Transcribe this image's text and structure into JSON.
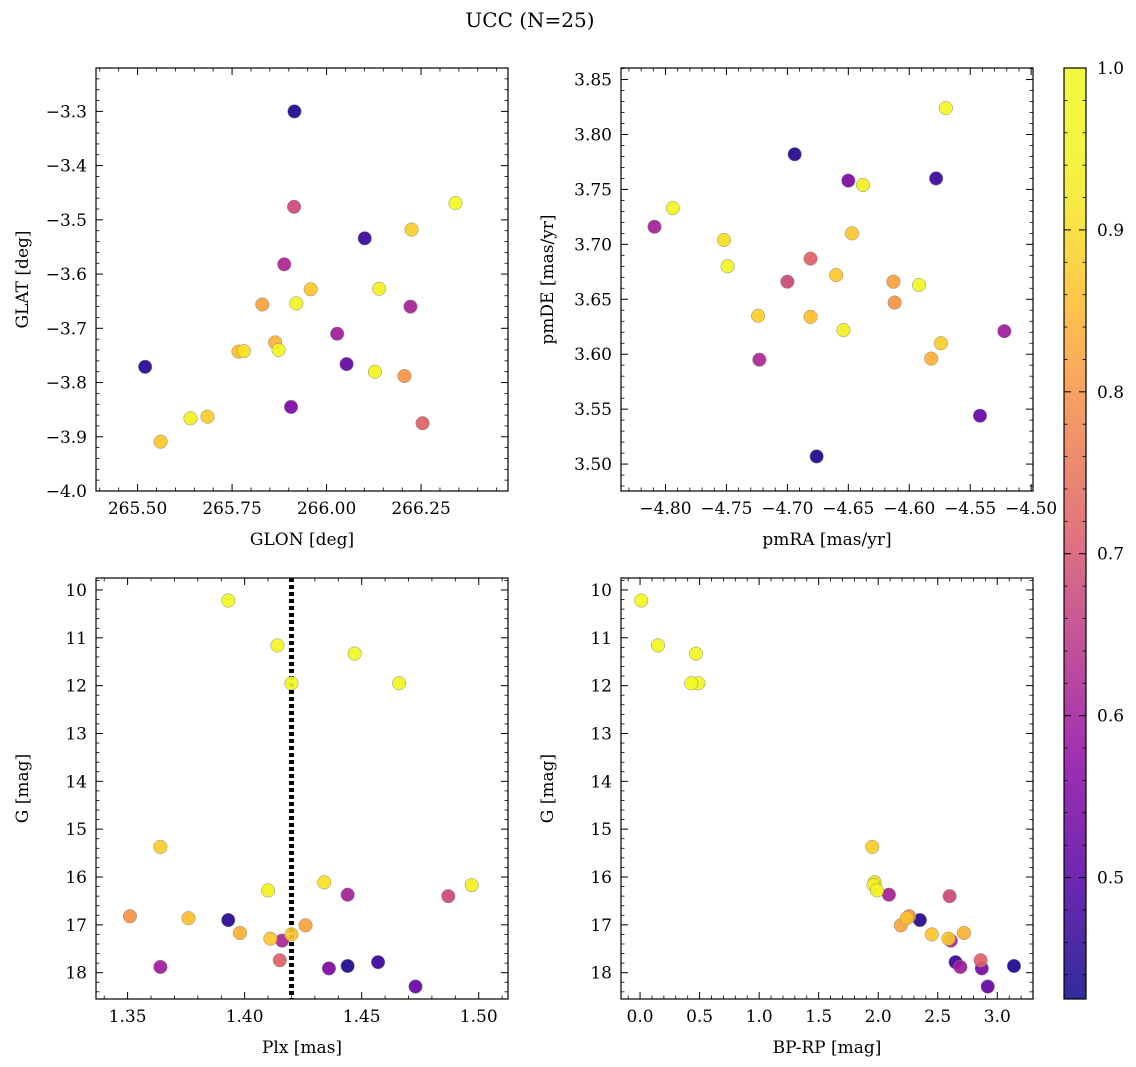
{
  "figure": {
    "title": "UCC (N=25)",
    "colorbar": {
      "min": 0.425,
      "max": 1.0,
      "ticks": [
        "0.5",
        "0.6",
        "0.7",
        "0.8",
        "0.9",
        "1.0"
      ],
      "colormap": "plasma"
    }
  },
  "chart_data": [
    {
      "type": "scatter",
      "xlabel": "GLON [deg]",
      "ylabel": "GLAT [deg]",
      "xlim": [
        265.39,
        266.48
      ],
      "ylim": [
        -4.0,
        -3.22
      ],
      "xticks": [
        265.5,
        265.75,
        266.0,
        266.25
      ],
      "xtick_labels": [
        "265.50",
        "265.75",
        "266.00",
        "266.25"
      ],
      "yticks": [
        -4.0,
        -3.9,
        -3.8,
        -3.7,
        -3.6,
        -3.5,
        -3.4,
        -3.3
      ],
      "ytick_labels": [
        "−4.0",
        "−3.9",
        "−3.8",
        "−3.7",
        "−3.6",
        "−3.5",
        "−3.4",
        "−3.3"
      ],
      "points": [
        {
          "x": 265.915,
          "y": -3.3,
          "c": 0.44
        },
        {
          "x": 265.52,
          "y": -3.771,
          "c": 0.45
        },
        {
          "x": 266.101,
          "y": -3.534,
          "c": 0.47
        },
        {
          "x": 266.053,
          "y": -3.766,
          "c": 0.52
        },
        {
          "x": 265.906,
          "y": -3.845,
          "c": 0.55
        },
        {
          "x": 266.028,
          "y": -3.71,
          "c": 0.6
        },
        {
          "x": 266.222,
          "y": -3.66,
          "c": 0.61
        },
        {
          "x": 265.888,
          "y": -3.582,
          "c": 0.62
        },
        {
          "x": 265.914,
          "y": -3.476,
          "c": 0.68
        },
        {
          "x": 266.254,
          "y": -3.875,
          "c": 0.72
        },
        {
          "x": 266.206,
          "y": -3.788,
          "c": 0.8
        },
        {
          "x": 265.83,
          "y": -3.656,
          "c": 0.82
        },
        {
          "x": 265.864,
          "y": -3.726,
          "c": 0.84
        },
        {
          "x": 265.767,
          "y": -3.743,
          "c": 0.86
        },
        {
          "x": 265.958,
          "y": -3.628,
          "c": 0.87
        },
        {
          "x": 265.561,
          "y": -3.909,
          "c": 0.87
        },
        {
          "x": 265.685,
          "y": -3.863,
          "c": 0.88
        },
        {
          "x": 266.225,
          "y": -3.518,
          "c": 0.88
        },
        {
          "x": 265.781,
          "y": -3.742,
          "c": 0.91
        },
        {
          "x": 266.139,
          "y": -3.627,
          "c": 0.93
        },
        {
          "x": 265.64,
          "y": -3.866,
          "c": 0.93
        },
        {
          "x": 266.128,
          "y": -3.78,
          "c": 0.96
        },
        {
          "x": 265.92,
          "y": -3.654,
          "c": 0.97
        },
        {
          "x": 265.873,
          "y": -3.74,
          "c": 0.97
        },
        {
          "x": 266.341,
          "y": -3.469,
          "c": 0.99
        }
      ]
    },
    {
      "type": "scatter",
      "xlabel": "pmRA [mas/yr]",
      "ylabel": "pmDE [mas/yr]",
      "xlim": [
        -4.8365,
        -4.4985
      ],
      "ylim": [
        3.4755,
        3.8605
      ],
      "xticks": [
        -4.8,
        -4.75,
        -4.7,
        -4.65,
        -4.6,
        -4.55,
        -4.5
      ],
      "xtick_labels": [
        "−4.80",
        "−4.75",
        "−4.70",
        "−4.65",
        "−4.60",
        "−4.55",
        "−4.50"
      ],
      "yticks": [
        3.5,
        3.55,
        3.6,
        3.65,
        3.7,
        3.75,
        3.8,
        3.85
      ],
      "ytick_labels": [
        "3.50",
        "3.55",
        "3.60",
        "3.65",
        "3.70",
        "3.75",
        "3.80",
        "3.85"
      ],
      "points": [
        {
          "x": -4.676,
          "y": 3.507,
          "c": 0.44
        },
        {
          "x": -4.694,
          "y": 3.782,
          "c": 0.45
        },
        {
          "x": -4.578,
          "y": 3.76,
          "c": 0.47
        },
        {
          "x": -4.542,
          "y": 3.544,
          "c": 0.52
        },
        {
          "x": -4.65,
          "y": 3.758,
          "c": 0.55
        },
        {
          "x": -4.522,
          "y": 3.621,
          "c": 0.6
        },
        {
          "x": -4.809,
          "y": 3.716,
          "c": 0.61
        },
        {
          "x": -4.723,
          "y": 3.595,
          "c": 0.62
        },
        {
          "x": -4.7,
          "y": 3.666,
          "c": 0.68
        },
        {
          "x": -4.681,
          "y": 3.687,
          "c": 0.72
        },
        {
          "x": -4.612,
          "y": 3.647,
          "c": 0.8
        },
        {
          "x": -4.613,
          "y": 3.666,
          "c": 0.82
        },
        {
          "x": -4.582,
          "y": 3.596,
          "c": 0.84
        },
        {
          "x": -4.681,
          "y": 3.634,
          "c": 0.86
        },
        {
          "x": -4.66,
          "y": 3.672,
          "c": 0.87
        },
        {
          "x": -4.647,
          "y": 3.71,
          "c": 0.87
        },
        {
          "x": -4.574,
          "y": 3.61,
          "c": 0.88
        },
        {
          "x": -4.724,
          "y": 3.635,
          "c": 0.88
        },
        {
          "x": -4.752,
          "y": 3.704,
          "c": 0.91
        },
        {
          "x": -4.654,
          "y": 3.622,
          "c": 0.93
        },
        {
          "x": -4.638,
          "y": 3.754,
          "c": 0.93
        },
        {
          "x": -4.749,
          "y": 3.68,
          "c": 0.96
        },
        {
          "x": -4.794,
          "y": 3.733,
          "c": 0.97
        },
        {
          "x": -4.592,
          "y": 3.663,
          "c": 0.97
        },
        {
          "x": -4.57,
          "y": 3.824,
          "c": 0.99
        }
      ]
    },
    {
      "type": "scatter",
      "xlabel": "Plx [mas]",
      "ylabel": "G [mag]",
      "xlim": [
        1.3365,
        1.5125
      ],
      "ylim": [
        18.55,
        9.75
      ],
      "y_inverted": true,
      "xticks": [
        1.35,
        1.4,
        1.45,
        1.5
      ],
      "xtick_labels": [
        "1.35",
        "1.40",
        "1.45",
        "1.50"
      ],
      "yticks": [
        10,
        11,
        12,
        13,
        14,
        15,
        16,
        17,
        18
      ],
      "ytick_labels": [
        "10",
        "11",
        "12",
        "13",
        "14",
        "15",
        "16",
        "17",
        "18"
      ],
      "vline": {
        "x": 1.42,
        "style": "dotted"
      },
      "points": [
        {
          "x": 1.444,
          "y": 17.86,
          "c": 0.44
        },
        {
          "x": 1.393,
          "y": 16.9,
          "c": 0.45
        },
        {
          "x": 1.457,
          "y": 17.78,
          "c": 0.47
        },
        {
          "x": 1.473,
          "y": 18.29,
          "c": 0.52
        },
        {
          "x": 1.436,
          "y": 17.91,
          "c": 0.55
        },
        {
          "x": 1.364,
          "y": 17.88,
          "c": 0.6
        },
        {
          "x": 1.444,
          "y": 16.37,
          "c": 0.61
        },
        {
          "x": 1.416,
          "y": 17.33,
          "c": 0.62
        },
        {
          "x": 1.487,
          "y": 16.4,
          "c": 0.68
        },
        {
          "x": 1.415,
          "y": 17.74,
          "c": 0.72
        },
        {
          "x": 1.351,
          "y": 16.82,
          "c": 0.8
        },
        {
          "x": 1.426,
          "y": 17.01,
          "c": 0.82
        },
        {
          "x": 1.398,
          "y": 17.17,
          "c": 0.84
        },
        {
          "x": 1.376,
          "y": 16.86,
          "c": 0.86
        },
        {
          "x": 1.42,
          "y": 17.2,
          "c": 0.87
        },
        {
          "x": 1.411,
          "y": 17.29,
          "c": 0.87
        },
        {
          "x": 1.364,
          "y": 15.37,
          "c": 0.88
        },
        {
          "x": 1.434,
          "y": 16.11,
          "c": 0.91
        },
        {
          "x": 1.497,
          "y": 16.17,
          "c": 0.93
        },
        {
          "x": 1.41,
          "y": 16.28,
          "c": 0.95
        },
        {
          "x": 1.447,
          "y": 11.33,
          "c": 0.97
        },
        {
          "x": 1.414,
          "y": 11.16,
          "c": 0.97
        },
        {
          "x": 1.466,
          "y": 11.95,
          "c": 0.98
        },
        {
          "x": 1.42,
          "y": 11.95,
          "c": 0.99
        },
        {
          "x": 1.393,
          "y": 10.22,
          "c": 0.99
        }
      ]
    },
    {
      "type": "scatter",
      "xlabel": "BP-RP [mag]",
      "ylabel": "G [mag]",
      "xlim": [
        -0.16,
        3.3
      ],
      "ylim": [
        18.55,
        9.75
      ],
      "y_inverted": true,
      "xticks": [
        0.0,
        0.5,
        1.0,
        1.5,
        2.0,
        2.5,
        3.0
      ],
      "xtick_labels": [
        "0.0",
        "0.5",
        "1.0",
        "1.5",
        "2.0",
        "2.5",
        "3.0"
      ],
      "yticks": [
        10,
        11,
        12,
        13,
        14,
        15,
        16,
        17,
        18
      ],
      "ytick_labels": [
        "10",
        "11",
        "12",
        "13",
        "14",
        "15",
        "16",
        "17",
        "18"
      ],
      "points": [
        {
          "x": 3.14,
          "y": 17.86,
          "c": 0.44
        },
        {
          "x": 2.35,
          "y": 16.9,
          "c": 0.45
        },
        {
          "x": 2.65,
          "y": 17.78,
          "c": 0.47
        },
        {
          "x": 2.92,
          "y": 18.29,
          "c": 0.52
        },
        {
          "x": 2.87,
          "y": 17.91,
          "c": 0.55
        },
        {
          "x": 2.69,
          "y": 17.88,
          "c": 0.6
        },
        {
          "x": 2.09,
          "y": 16.37,
          "c": 0.61
        },
        {
          "x": 2.61,
          "y": 17.33,
          "c": 0.62
        },
        {
          "x": 2.6,
          "y": 16.4,
          "c": 0.68
        },
        {
          "x": 2.86,
          "y": 17.74,
          "c": 0.72
        },
        {
          "x": 2.26,
          "y": 16.82,
          "c": 0.8
        },
        {
          "x": 2.19,
          "y": 17.01,
          "c": 0.82
        },
        {
          "x": 2.72,
          "y": 17.17,
          "c": 0.84
        },
        {
          "x": 2.24,
          "y": 16.86,
          "c": 0.86
        },
        {
          "x": 2.59,
          "y": 17.29,
          "c": 0.87
        },
        {
          "x": 2.45,
          "y": 17.2,
          "c": 0.87
        },
        {
          "x": 1.95,
          "y": 15.37,
          "c": 0.88
        },
        {
          "x": 1.97,
          "y": 16.11,
          "c": 0.91
        },
        {
          "x": 1.96,
          "y": 16.17,
          "c": 0.93
        },
        {
          "x": 1.99,
          "y": 16.28,
          "c": 0.95
        },
        {
          "x": 0.47,
          "y": 11.33,
          "c": 0.97
        },
        {
          "x": 0.15,
          "y": 11.16,
          "c": 0.97
        },
        {
          "x": 0.49,
          "y": 11.95,
          "c": 0.98
        },
        {
          "x": 0.43,
          "y": 11.95,
          "c": 0.99
        },
        {
          "x": 0.01,
          "y": 10.22,
          "c": 0.99
        }
      ]
    }
  ]
}
